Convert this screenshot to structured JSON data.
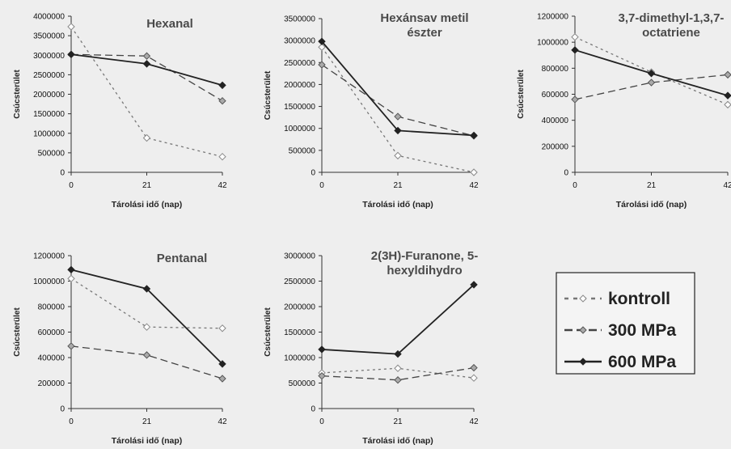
{
  "chart_data": [
    {
      "type": "line",
      "title": [
        "Hexanal"
      ],
      "xlabel": "Tárolási idő (nap)",
      "ylabel": "Csúcsterület",
      "x": [
        0,
        21,
        42
      ],
      "ylim": [
        0,
        4000000
      ],
      "yticks": [
        "0",
        "500000",
        "1000000",
        "1500000",
        "2000000",
        "2500000",
        "3000000",
        "3500000",
        "4000000"
      ],
      "series": [
        {
          "name": "kontroll",
          "values": [
            3730000,
            880000,
            400000
          ]
        },
        {
          "name": "300 MPa",
          "values": [
            3020000,
            2980000,
            1830000
          ]
        },
        {
          "name": "600 MPa",
          "values": [
            3020000,
            2780000,
            2230000
          ]
        }
      ]
    },
    {
      "type": "line",
      "title": [
        "Hexánsav metil",
        "észter"
      ],
      "xlabel": "Tárolási idő (nap)",
      "ylabel": "Csúcsterület",
      "x": [
        0,
        21,
        42
      ],
      "ylim": [
        0,
        3500000
      ],
      "yticks": [
        "0",
        "500000",
        "1000000",
        "1500000",
        "2000000",
        "2500000",
        "3000000",
        "3500000"
      ],
      "series": [
        {
          "name": "kontroll",
          "values": [
            2850000,
            380000,
            0
          ]
        },
        {
          "name": "300 MPa",
          "values": [
            2450000,
            1270000,
            830000
          ]
        },
        {
          "name": "600 MPa",
          "values": [
            2980000,
            950000,
            840000
          ]
        }
      ]
    },
    {
      "type": "line",
      "title": [
        "3,7-dimethyl-1,3,7-",
        "octatriene"
      ],
      "xlabel": "Tárolási idő (nap)",
      "ylabel": "Csúcsterület",
      "x": [
        0,
        21,
        42
      ],
      "ylim": [
        0,
        1200000
      ],
      "yticks": [
        "0",
        "200000",
        "400000",
        "600000",
        "800000",
        "1000000",
        "1200000"
      ],
      "series": [
        {
          "name": "kontroll",
          "values": [
            1040000,
            770000,
            520000
          ]
        },
        {
          "name": "300 MPa",
          "values": [
            560000,
            690000,
            750000
          ]
        },
        {
          "name": "600 MPa",
          "values": [
            940000,
            760000,
            590000
          ]
        }
      ]
    },
    {
      "type": "line",
      "title": [
        "Pentanal"
      ],
      "xlabel": "Tárolási idő (nap)",
      "ylabel": "Csúcsterület",
      "x": [
        0,
        21,
        42
      ],
      "ylim": [
        0,
        1200000
      ],
      "yticks": [
        "0",
        "200000",
        "400000",
        "600000",
        "800000",
        "1000000",
        "1200000"
      ],
      "series": [
        {
          "name": "kontroll",
          "values": [
            1020000,
            640000,
            630000
          ]
        },
        {
          "name": "300 MPa",
          "values": [
            490000,
            420000,
            235000
          ]
        },
        {
          "name": "600 MPa",
          "values": [
            1090000,
            940000,
            350000
          ]
        }
      ]
    },
    {
      "type": "line",
      "title": [
        "2(3H)-Furanone, 5-",
        "hexyldihydro"
      ],
      "xlabel": "Tárolási idő (nap)",
      "ylabel": "Csúcsterület",
      "x": [
        0,
        21,
        42
      ],
      "ylim": [
        0,
        3000000
      ],
      "yticks": [
        "0",
        "500000",
        "1000000",
        "1500000",
        "2000000",
        "2500000",
        "3000000"
      ],
      "series": [
        {
          "name": "kontroll",
          "values": [
            700000,
            790000,
            600000
          ]
        },
        {
          "name": "300 MPa",
          "values": [
            640000,
            560000,
            800000
          ]
        },
        {
          "name": "600 MPa",
          "values": [
            1160000,
            1070000,
            2430000
          ]
        }
      ]
    }
  ],
  "legend": [
    {
      "label": "kontroll"
    },
    {
      "label": "300 MPa"
    },
    {
      "label": "600 MPa"
    }
  ]
}
